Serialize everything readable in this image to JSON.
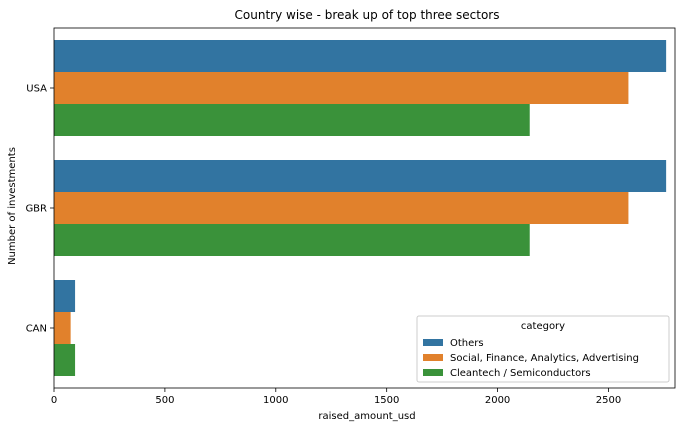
{
  "chart_data": {
    "type": "bar",
    "orientation": "horizontal",
    "title": "Country wise - break up of top three sectors",
    "xlabel": "raised_amount_usd",
    "ylabel": "Number of investments",
    "categories": [
      "USA",
      "GBR",
      "CAN"
    ],
    "xlim": [
      0,
      2800
    ],
    "xticks": [
      0,
      500,
      1000,
      1500,
      2000,
      2500
    ],
    "grid": false,
    "legend": {
      "title": "category",
      "placement": "lower-right"
    },
    "series": [
      {
        "name": "Others",
        "color": "#3274a1",
        "values": [
          2760,
          2760,
          95
        ]
      },
      {
        "name": "Social, Finance, Analytics, Advertising",
        "color": "#e1812c",
        "values": [
          2590,
          2590,
          75
        ]
      },
      {
        "name": "Cleantech / Semiconductors",
        "color": "#3a923a",
        "values": [
          2145,
          2145,
          95
        ]
      }
    ]
  }
}
